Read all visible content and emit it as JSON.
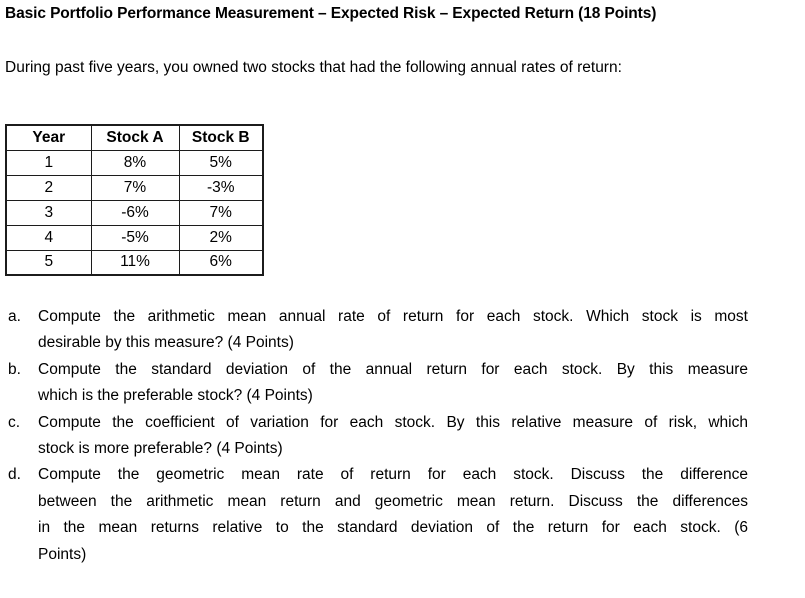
{
  "document": {
    "title": "Basic Portfolio Performance Measurement – Expected Risk – Expected Return (18 Points)",
    "intro": "During past five years, you owned two stocks that had the following annual rates of return:",
    "table": {
      "headers": [
        "Year",
        "Stock A",
        "Stock B"
      ],
      "rows": [
        [
          "1",
          "8%",
          "5%"
        ],
        [
          "2",
          "7%",
          "-3%"
        ],
        [
          "3",
          "-6%",
          "7%"
        ],
        [
          "4",
          "-5%",
          "2%"
        ],
        [
          "5",
          "11%",
          "6%"
        ]
      ]
    },
    "questions": [
      {
        "marker": "a.",
        "lines": [
          "Compute the arithmetic mean annual rate of return for each stock. Which stock is most",
          "desirable by this measure? (4 Points)"
        ]
      },
      {
        "marker": "b.",
        "lines": [
          "Compute the standard deviation of the annual return for each stock. By this measure",
          "which is the preferable stock? (4 Points)"
        ]
      },
      {
        "marker": "c.",
        "lines": [
          "Compute the coefficient of variation for each stock. By this relative measure of risk, which",
          "stock is more preferable? (4 Points)"
        ]
      },
      {
        "marker": "d.",
        "lines": [
          "Compute the geometric mean rate of return for each stock. Discuss the difference",
          "between the arithmetic mean return and geometric mean return. Discuss the differences",
          "in the mean returns relative to the standard deviation of the return for each stock. (6",
          "Points)"
        ]
      }
    ],
    "colors": {
      "text": "#000000",
      "background": "#ffffff",
      "table_border": "#1c1c1c"
    }
  }
}
